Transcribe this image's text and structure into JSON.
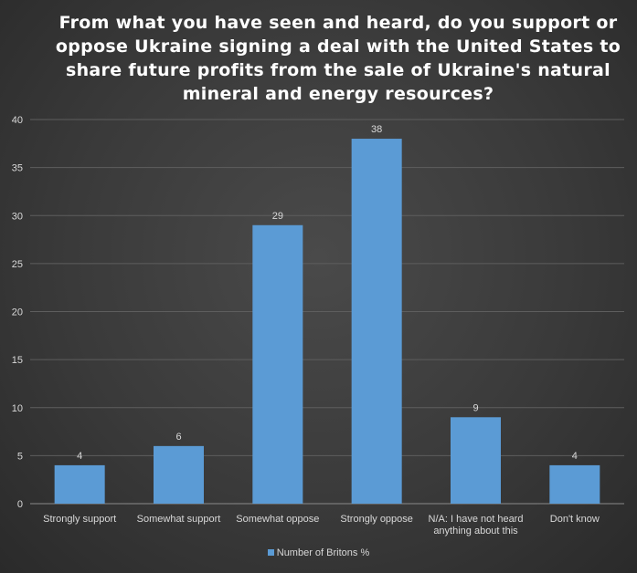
{
  "chart_data": {
    "type": "bar",
    "title": "From what you have seen and heard, do you support or oppose Ukraine signing a deal with the United States to share future profits from the sale of Ukraine's natural mineral and energy resources?",
    "categories": [
      [
        "Strongly support"
      ],
      [
        "Somewhat support"
      ],
      [
        "Somewhat oppose"
      ],
      [
        "Strongly oppose"
      ],
      [
        "N/A: I have not heard",
        "anything about this"
      ],
      [
        "Don't know"
      ]
    ],
    "series": [
      {
        "name": "Number of Britons %",
        "values": [
          4,
          6,
          29,
          38,
          9,
          4
        ]
      }
    ],
    "ylim": [
      0,
      40
    ],
    "yticks": [
      0,
      5,
      10,
      15,
      20,
      25,
      30,
      35,
      40
    ],
    "grid": true,
    "legend": "bottom",
    "bar_color": "#5b9bd5"
  }
}
